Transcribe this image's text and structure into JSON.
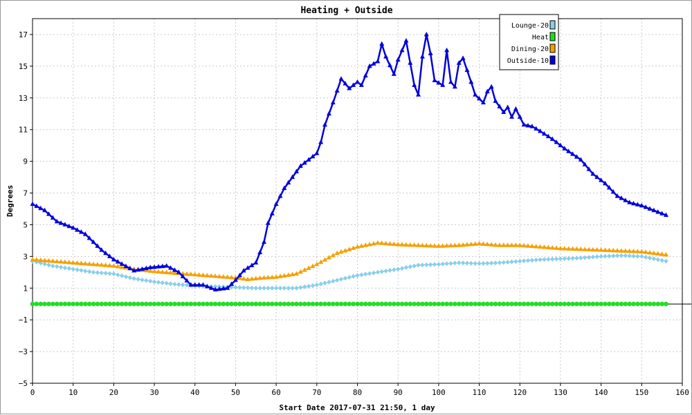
{
  "chart_data": {
    "type": "line",
    "title": "Heating + Outside",
    "xlabel": "Start Date 2017-07-31 21:50, 1 day",
    "ylabel": "Degrees",
    "xlim": [
      0,
      160
    ],
    "ylim": [
      -5,
      18
    ],
    "x_ticks": [
      0,
      10,
      20,
      30,
      40,
      50,
      60,
      70,
      80,
      90,
      100,
      110,
      120,
      130,
      140,
      150,
      160
    ],
    "y_ticks": [
      -5,
      -3,
      -1,
      1,
      3,
      5,
      7,
      9,
      11,
      13,
      15,
      17
    ],
    "grid": true,
    "legend_position": "top-right",
    "series": [
      {
        "name": "Lounge-20",
        "color": "#87ceeb",
        "marker": "diamond",
        "points": [
          [
            0,
            2.7
          ],
          [
            5,
            2.4
          ],
          [
            10,
            2.2
          ],
          [
            15,
            2.0
          ],
          [
            20,
            1.9
          ],
          [
            25,
            1.6
          ],
          [
            30,
            1.4
          ],
          [
            35,
            1.25
          ],
          [
            40,
            1.15
          ],
          [
            45,
            1.1
          ],
          [
            50,
            1.05
          ],
          [
            55,
            1.0
          ],
          [
            60,
            1.0
          ],
          [
            65,
            1.0
          ],
          [
            70,
            1.2
          ],
          [
            75,
            1.5
          ],
          [
            80,
            1.8
          ],
          [
            85,
            2.0
          ],
          [
            90,
            2.2
          ],
          [
            95,
            2.45
          ],
          [
            100,
            2.5
          ],
          [
            105,
            2.6
          ],
          [
            110,
            2.55
          ],
          [
            115,
            2.6
          ],
          [
            120,
            2.7
          ],
          [
            125,
            2.8
          ],
          [
            130,
            2.85
          ],
          [
            135,
            2.9
          ],
          [
            140,
            3.0
          ],
          [
            145,
            3.05
          ],
          [
            150,
            3.0
          ],
          [
            156,
            2.7
          ]
        ]
      },
      {
        "name": "Heat",
        "color": "#22dd22",
        "marker": "circle",
        "points": [
          [
            0,
            0
          ],
          [
            156,
            0
          ]
        ]
      },
      {
        "name": "Dining-20",
        "color": "#f5a000",
        "marker": "triangle",
        "points": [
          [
            0,
            2.8
          ],
          [
            5,
            2.7
          ],
          [
            10,
            2.6
          ],
          [
            15,
            2.5
          ],
          [
            20,
            2.4
          ],
          [
            25,
            2.2
          ],
          [
            30,
            2.05
          ],
          [
            35,
            1.95
          ],
          [
            40,
            1.85
          ],
          [
            45,
            1.75
          ],
          [
            50,
            1.65
          ],
          [
            53,
            1.55
          ],
          [
            57,
            1.65
          ],
          [
            60,
            1.7
          ],
          [
            65,
            1.9
          ],
          [
            70,
            2.5
          ],
          [
            75,
            3.2
          ],
          [
            80,
            3.6
          ],
          [
            85,
            3.85
          ],
          [
            90,
            3.75
          ],
          [
            95,
            3.7
          ],
          [
            100,
            3.65
          ],
          [
            105,
            3.7
          ],
          [
            110,
            3.8
          ],
          [
            115,
            3.7
          ],
          [
            120,
            3.7
          ],
          [
            125,
            3.6
          ],
          [
            130,
            3.5
          ],
          [
            135,
            3.45
          ],
          [
            140,
            3.4
          ],
          [
            145,
            3.35
          ],
          [
            150,
            3.3
          ],
          [
            156,
            3.1
          ]
        ]
      },
      {
        "name": "Outside-10",
        "color": "#0000dd",
        "marker": "triangle",
        "points": [
          [
            0,
            6.3
          ],
          [
            3,
            5.9
          ],
          [
            6,
            5.2
          ],
          [
            10,
            4.8
          ],
          [
            13,
            4.4
          ],
          [
            17,
            3.4
          ],
          [
            20,
            2.8
          ],
          [
            25,
            2.1
          ],
          [
            29,
            2.3
          ],
          [
            33,
            2.4
          ],
          [
            36,
            2.0
          ],
          [
            39,
            1.2
          ],
          [
            42,
            1.2
          ],
          [
            45,
            0.9
          ],
          [
            48,
            1.0
          ],
          [
            50,
            1.5
          ],
          [
            52,
            2.1
          ],
          [
            55,
            2.6
          ],
          [
            57,
            3.9
          ],
          [
            58,
            5.1
          ],
          [
            60,
            6.3
          ],
          [
            62,
            7.3
          ],
          [
            64,
            8.0
          ],
          [
            66,
            8.7
          ],
          [
            68,
            9.1
          ],
          [
            70,
            9.5
          ],
          [
            71,
            10.2
          ],
          [
            72,
            11.3
          ],
          [
            74,
            12.7
          ],
          [
            76,
            14.2
          ],
          [
            78,
            13.6
          ],
          [
            80,
            14.0
          ],
          [
            81,
            13.8
          ],
          [
            83,
            15.0
          ],
          [
            85,
            15.3
          ],
          [
            86,
            16.4
          ],
          [
            87,
            15.6
          ],
          [
            89,
            14.5
          ],
          [
            90,
            15.4
          ],
          [
            92,
            16.6
          ],
          [
            94,
            13.8
          ],
          [
            95,
            13.2
          ],
          [
            96,
            15.6
          ],
          [
            97,
            17.0
          ],
          [
            98,
            15.8
          ],
          [
            99,
            14.1
          ],
          [
            101,
            13.8
          ],
          [
            102,
            16.0
          ],
          [
            103,
            14.0
          ],
          [
            104,
            13.7
          ],
          [
            105,
            15.2
          ],
          [
            106,
            15.5
          ],
          [
            108,
            14.0
          ],
          [
            109,
            13.2
          ],
          [
            111,
            12.7
          ],
          [
            112,
            13.4
          ],
          [
            113,
            13.7
          ],
          [
            114,
            12.8
          ],
          [
            116,
            12.1
          ],
          [
            117,
            12.4
          ],
          [
            118,
            11.8
          ],
          [
            119,
            12.3
          ],
          [
            121,
            11.3
          ],
          [
            123,
            11.2
          ],
          [
            125,
            10.9
          ],
          [
            128,
            10.4
          ],
          [
            131,
            9.8
          ],
          [
            135,
            9.1
          ],
          [
            138,
            8.2
          ],
          [
            141,
            7.6
          ],
          [
            144,
            6.8
          ],
          [
            147,
            6.4
          ],
          [
            150,
            6.2
          ],
          [
            153,
            5.9
          ],
          [
            156,
            5.6
          ]
        ]
      }
    ]
  }
}
